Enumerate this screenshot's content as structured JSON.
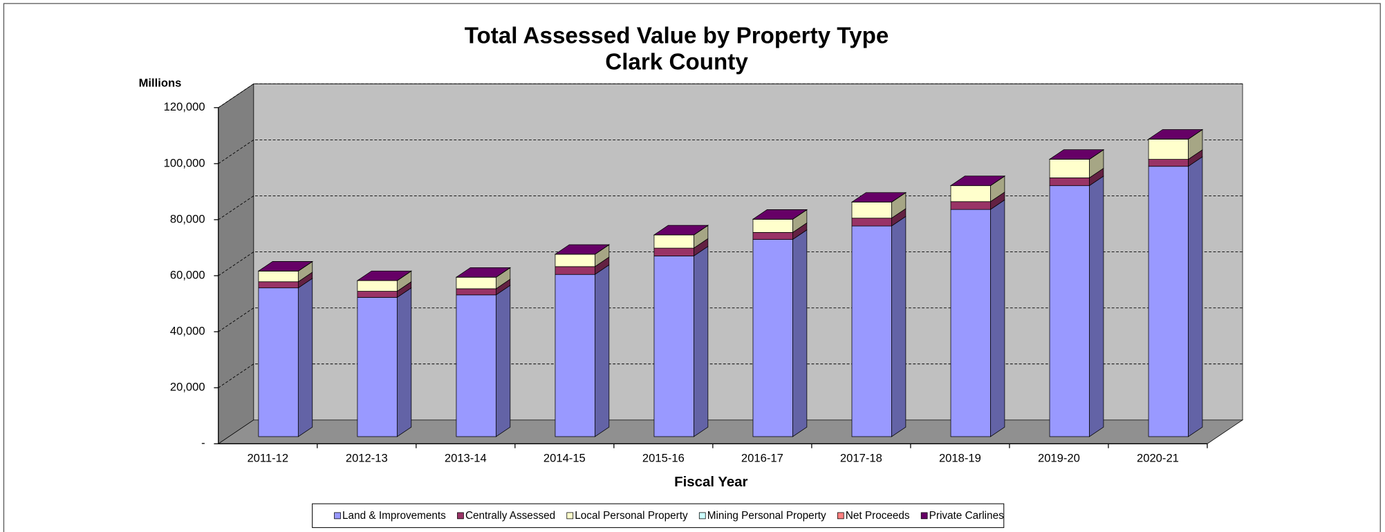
{
  "chart_data": {
    "type": "bar3d_stacked",
    "title": "Total Assessed Value by Property Type",
    "subtitle": "Clark County",
    "y_axis_label": "Millions",
    "x_axis_label": "Fiscal Year",
    "categories": [
      "2011-12",
      "2012-13",
      "2013-14",
      "2014-15",
      "2015-16",
      "2016-17",
      "2017-18",
      "2018-19",
      "2019-20",
      "2020-21"
    ],
    "series": [
      {
        "name": "Land & Improvements",
        "color": "#9999ff",
        "values": [
          53100,
          49700,
          50600,
          57900,
          64500,
          70400,
          75200,
          81100,
          89600,
          96500
        ]
      },
      {
        "name": "Centrally Assessed",
        "color": "#993366",
        "values": [
          2200,
          2200,
          2200,
          2800,
          2800,
          2500,
          2800,
          2800,
          2800,
          2500
        ]
      },
      {
        "name": "Local Personal Property",
        "color": "#ffffcc",
        "values": [
          3800,
          3800,
          4100,
          4400,
          4700,
          4700,
          5700,
          5700,
          6600,
          7200
        ]
      },
      {
        "name": "Mining Personal Property",
        "color": "#ccffff",
        "values": [
          0,
          0,
          0,
          0,
          0,
          0,
          0,
          0,
          0,
          0
        ]
      },
      {
        "name": "Net Proceeds",
        "color": "#ff8080",
        "values": [
          0,
          0,
          0,
          0,
          0,
          0,
          0,
          0,
          0,
          0
        ]
      },
      {
        "name": "Private Carlines",
        "color": "#660066",
        "values": [
          30,
          30,
          30,
          30,
          30,
          30,
          30,
          30,
          30,
          30
        ]
      }
    ],
    "ylim": [
      0,
      120000
    ],
    "yticks": [
      {
        "value": 0,
        "label": "-"
      },
      {
        "value": 20000,
        "label": "20,000"
      },
      {
        "value": 40000,
        "label": "40,000"
      },
      {
        "value": 60000,
        "label": "60,000"
      },
      {
        "value": 80000,
        "label": "80,000"
      },
      {
        "value": 100000,
        "label": "100,000"
      },
      {
        "value": 120000,
        "label": "120,000"
      }
    ],
    "grid": true,
    "legend": "bottom"
  }
}
